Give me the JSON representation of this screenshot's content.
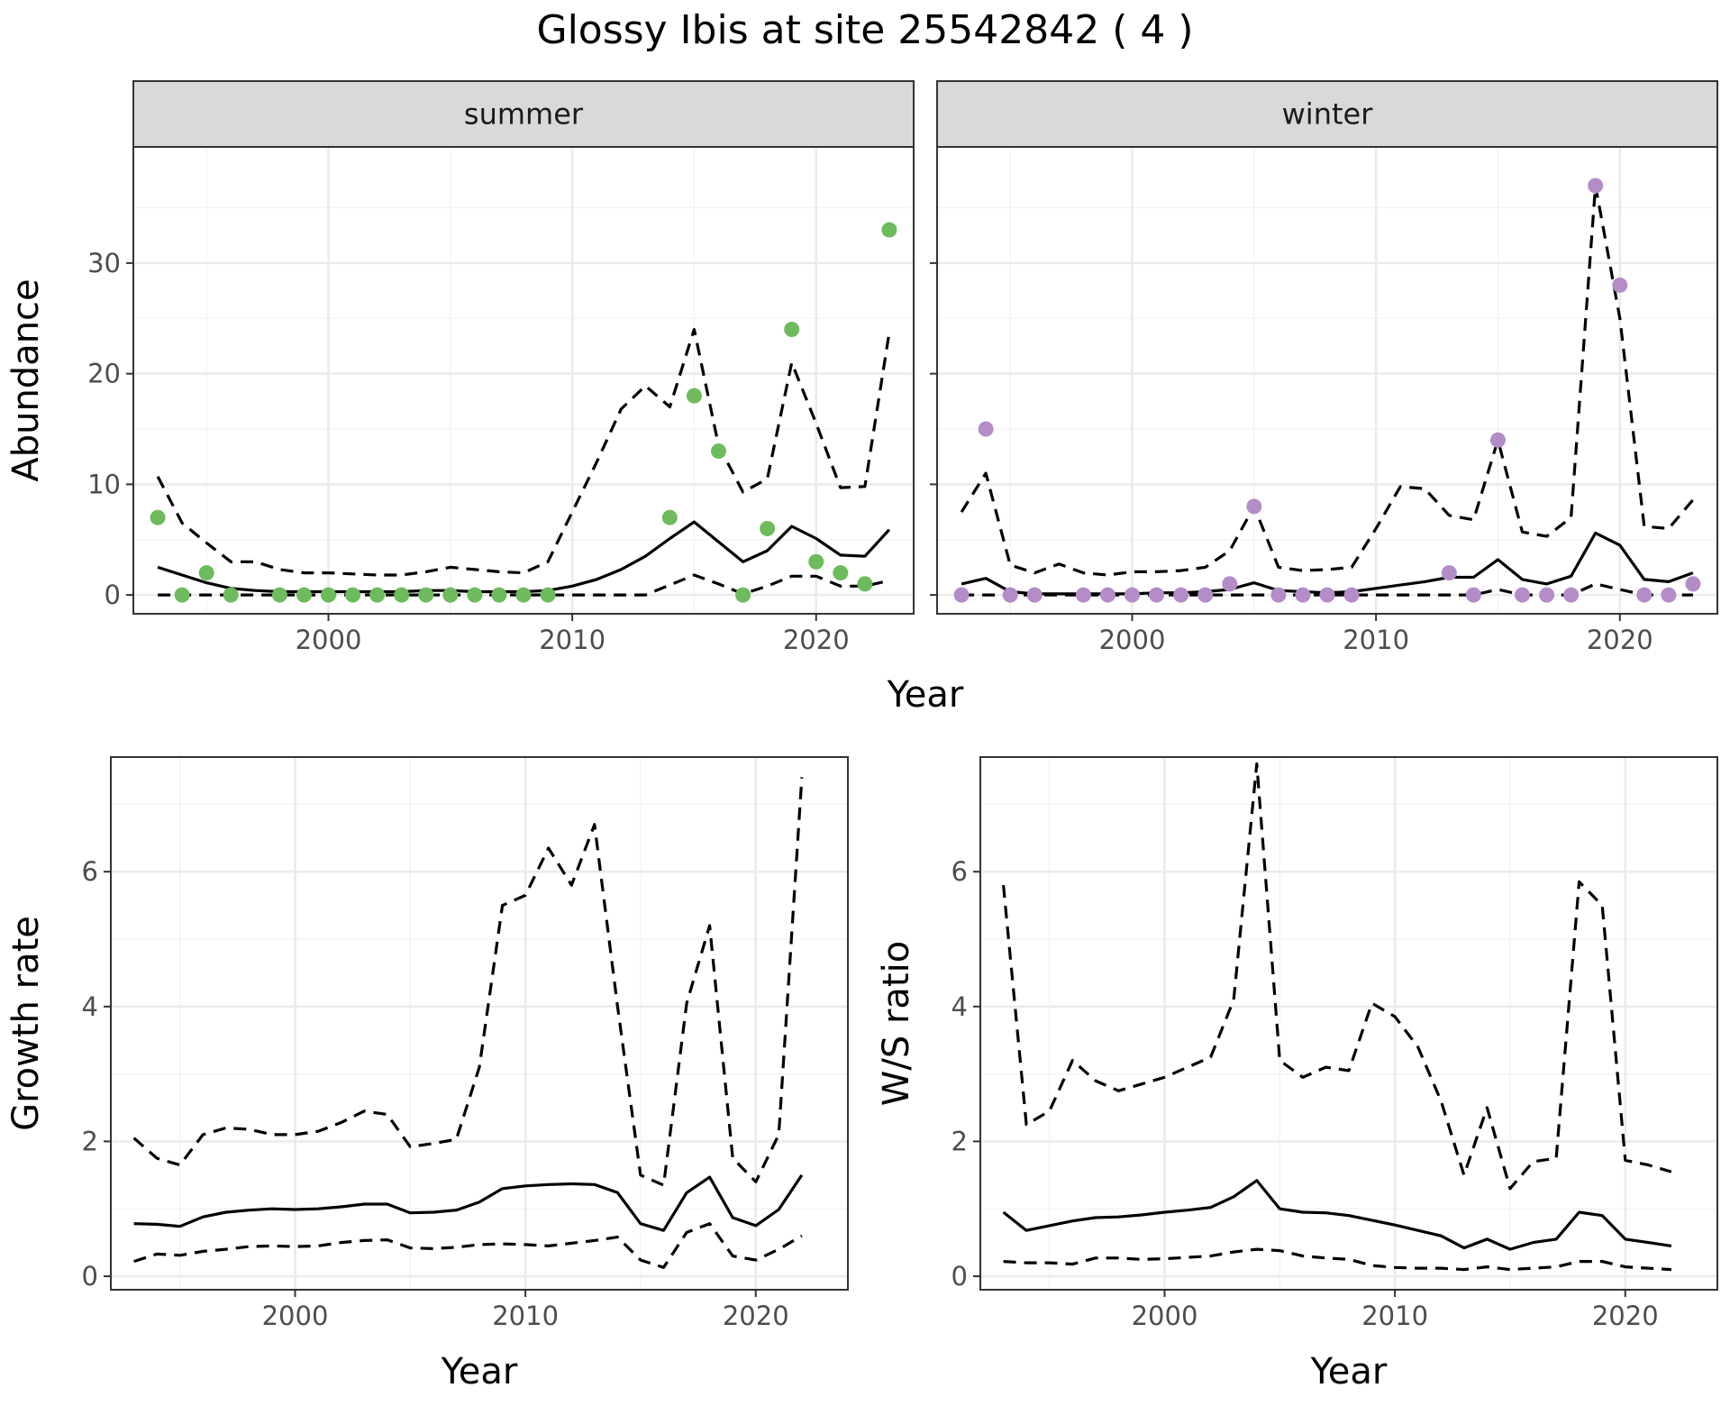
{
  "title": "Glossy Ibis at site 25542842 ( 4 )",
  "colors": {
    "summer_points": "#6dbb5c",
    "winter_points": "#b48cc8",
    "lines": "#000000",
    "strip": "#d9d9d9"
  },
  "chart_data": [
    {
      "type": "line",
      "panel": "summer",
      "strip_label": "summer",
      "xlabel": "Year",
      "ylabel": "Abundance",
      "xlim": [
        1992,
        2024
      ],
      "ylim": [
        -1.7,
        40.5
      ],
      "x_ticks": [
        2000,
        2010,
        2020
      ],
      "y_ticks": [
        0,
        10,
        20,
        30
      ],
      "points_color": "#6dbb5c",
      "points": {
        "x": [
          1993,
          1994,
          1995,
          1996,
          1998,
          1999,
          2000,
          2001,
          2002,
          2003,
          2004,
          2005,
          2006,
          2007,
          2008,
          2009,
          2014,
          2015,
          2016,
          2017,
          2018,
          2019,
          2020,
          2021,
          2022,
          2023
        ],
        "y": [
          7,
          0,
          2,
          0,
          0,
          0,
          0,
          0,
          0,
          0,
          0,
          0,
          0,
          0,
          0,
          0,
          7,
          18,
          13,
          0,
          6,
          24,
          3,
          2,
          1,
          33
        ]
      },
      "series": [
        {
          "role": "estimate",
          "x": [
            1993,
            1994,
            1995,
            1996,
            1997,
            1998,
            1999,
            2000,
            2001,
            2002,
            2003,
            2004,
            2005,
            2006,
            2007,
            2008,
            2009,
            2010,
            2011,
            2012,
            2013,
            2014,
            2015,
            2016,
            2017,
            2018,
            2019,
            2020,
            2021,
            2022,
            2023
          ],
          "y": [
            2.5,
            1.8,
            1.1,
            0.6,
            0.4,
            0.3,
            0.3,
            0.3,
            0.3,
            0.3,
            0.3,
            0.4,
            0.4,
            0.3,
            0.3,
            0.3,
            0.4,
            0.8,
            1.4,
            2.3,
            3.5,
            5.1,
            6.6,
            4.8,
            3.0,
            4.0,
            6.2,
            5.1,
            3.6,
            3.5,
            5.9
          ]
        },
        {
          "role": "upper",
          "x": [
            1993,
            1994,
            1995,
            1996,
            1997,
            1998,
            1999,
            2000,
            2001,
            2002,
            2003,
            2004,
            2005,
            2006,
            2007,
            2008,
            2009,
            2010,
            2011,
            2012,
            2013,
            2014,
            2015,
            2016,
            2017,
            2018,
            2019,
            2020,
            2021,
            2022,
            2023
          ],
          "y": [
            10.7,
            6.5,
            4.7,
            3.0,
            3.0,
            2.3,
            2.0,
            2.0,
            1.9,
            1.8,
            1.8,
            2.1,
            2.5,
            2.3,
            2.1,
            2.0,
            3.0,
            7.5,
            12.0,
            16.8,
            18.9,
            17.0,
            24.0,
            13.5,
            9.3,
            10.5,
            21.0,
            15.5,
            9.7,
            9.8,
            23.7
          ]
        },
        {
          "role": "lower",
          "x": [
            1993,
            1994,
            1995,
            1996,
            1997,
            1998,
            1999,
            2000,
            2001,
            2002,
            2003,
            2004,
            2005,
            2006,
            2007,
            2008,
            2009,
            2010,
            2011,
            2012,
            2013,
            2014,
            2015,
            2016,
            2017,
            2018,
            2019,
            2020,
            2021,
            2022,
            2023
          ],
          "y": [
            0,
            0,
            0,
            0,
            0,
            0,
            0,
            0,
            0,
            0,
            0,
            0,
            0,
            0,
            0,
            0,
            0,
            0,
            0,
            0,
            0,
            0.9,
            1.8,
            1.0,
            0.1,
            0.8,
            1.7,
            1.7,
            0.8,
            0.8,
            1.3
          ]
        }
      ]
    },
    {
      "type": "line",
      "panel": "winter",
      "strip_label": "winter",
      "xlabel": "Year",
      "ylabel": "Abundance",
      "xlim": [
        1992,
        2024
      ],
      "ylim": [
        -1.7,
        40.5
      ],
      "x_ticks": [
        2000,
        2010,
        2020
      ],
      "y_ticks": [
        0,
        10,
        20,
        30
      ],
      "points_color": "#b48cc8",
      "points": {
        "x": [
          1993,
          1994,
          1995,
          1996,
          1998,
          1999,
          2000,
          2001,
          2002,
          2003,
          2004,
          2005,
          2006,
          2007,
          2008,
          2009,
          2013,
          2014,
          2015,
          2016,
          2017,
          2018,
          2019,
          2020,
          2021,
          2022,
          2023
        ],
        "y": [
          0,
          15,
          0,
          0,
          0,
          0,
          0,
          0,
          0,
          0,
          1,
          8,
          0,
          0,
          0,
          0,
          2,
          0,
          14,
          0,
          0,
          0,
          37,
          28,
          0,
          0,
          1
        ]
      },
      "series": [
        {
          "role": "estimate",
          "x": [
            1993,
            1994,
            1995,
            1996,
            1997,
            1998,
            1999,
            2000,
            2001,
            2002,
            2003,
            2004,
            2005,
            2006,
            2007,
            2008,
            2009,
            2010,
            2011,
            2012,
            2013,
            2014,
            2015,
            2016,
            2017,
            2018,
            2019,
            2020,
            2021,
            2022,
            2023
          ],
          "y": [
            1.0,
            1.5,
            0.3,
            0.1,
            0.1,
            0.1,
            0.1,
            0.1,
            0.2,
            0.2,
            0.3,
            0.5,
            1.1,
            0.4,
            0.3,
            0.2,
            0.3,
            0.6,
            0.9,
            1.2,
            1.6,
            1.6,
            3.2,
            1.4,
            1.0,
            1.7,
            5.6,
            4.5,
            1.4,
            1.2,
            2.0
          ]
        },
        {
          "role": "upper",
          "x": [
            1993,
            1994,
            1995,
            1996,
            1997,
            1998,
            1999,
            2000,
            2001,
            2002,
            2003,
            2004,
            2005,
            2006,
            2007,
            2008,
            2009,
            2010,
            2011,
            2012,
            2013,
            2014,
            2015,
            2016,
            2017,
            2018,
            2019,
            2020,
            2021,
            2022,
            2023
          ],
          "y": [
            7.5,
            11.0,
            2.7,
            2.0,
            2.8,
            2.0,
            1.8,
            2.1,
            2.1,
            2.2,
            2.5,
            4.0,
            8.0,
            2.5,
            2.2,
            2.3,
            2.5,
            6.0,
            9.8,
            9.6,
            7.2,
            6.8,
            14.0,
            5.7,
            5.3,
            7.0,
            37.0,
            25.0,
            6.2,
            6.0,
            8.6
          ]
        },
        {
          "role": "lower",
          "x": [
            1993,
            1994,
            1995,
            1996,
            1997,
            1998,
            1999,
            2000,
            2001,
            2002,
            2003,
            2004,
            2005,
            2006,
            2007,
            2008,
            2009,
            2010,
            2011,
            2012,
            2013,
            2014,
            2015,
            2016,
            2017,
            2018,
            2019,
            2020,
            2021,
            2022,
            2023
          ],
          "y": [
            0,
            0,
            0,
            0,
            0,
            0,
            0,
            0,
            0,
            0,
            0,
            0,
            0,
            0,
            0,
            0,
            0,
            0,
            0,
            0,
            0,
            0,
            0.5,
            0,
            0,
            0,
            1.0,
            0.5,
            0,
            0,
            0
          ]
        }
      ]
    },
    {
      "type": "line",
      "panel": "growth",
      "xlabel": "Year",
      "ylabel": "Growth rate",
      "xlim": [
        1992,
        2024
      ],
      "ylim": [
        -0.2,
        7.7
      ],
      "x_ticks": [
        2000,
        2010,
        2020
      ],
      "y_ticks": [
        0,
        2,
        4,
        6
      ],
      "series": [
        {
          "role": "estimate",
          "x": [
            1993,
            1994,
            1995,
            1996,
            1997,
            1998,
            1999,
            2000,
            2001,
            2002,
            2003,
            2004,
            2005,
            2006,
            2007,
            2008,
            2009,
            2010,
            2011,
            2012,
            2013,
            2014,
            2015,
            2016,
            2017,
            2018,
            2019,
            2020,
            2021,
            2022
          ],
          "y": [
            0.78,
            0.77,
            0.74,
            0.88,
            0.95,
            0.98,
            1.0,
            0.99,
            1.0,
            1.03,
            1.07,
            1.07,
            0.94,
            0.95,
            0.98,
            1.1,
            1.3,
            1.34,
            1.36,
            1.37,
            1.36,
            1.24,
            0.78,
            0.68,
            1.24,
            1.47,
            0.87,
            0.75,
            0.99,
            1.5
          ]
        },
        {
          "role": "upper",
          "x": [
            1993,
            1994,
            1995,
            1996,
            1997,
            1998,
            1999,
            2000,
            2001,
            2002,
            2003,
            2004,
            2005,
            2006,
            2007,
            2008,
            2009,
            2010,
            2011,
            2012,
            2013,
            2014,
            2015,
            2016,
            2017,
            2018,
            2019,
            2020,
            2021,
            2022
          ],
          "y": [
            2.05,
            1.75,
            1.65,
            2.1,
            2.2,
            2.18,
            2.1,
            2.1,
            2.15,
            2.28,
            2.45,
            2.4,
            1.92,
            1.97,
            2.03,
            3.1,
            5.5,
            5.65,
            6.35,
            5.8,
            6.7,
            4.0,
            1.5,
            1.35,
            4.05,
            5.2,
            1.75,
            1.4,
            2.1,
            7.4
          ]
        },
        {
          "role": "lower",
          "x": [
            1993,
            1994,
            1995,
            1996,
            1997,
            1998,
            1999,
            2000,
            2001,
            2002,
            2003,
            2004,
            2005,
            2006,
            2007,
            2008,
            2009,
            2010,
            2011,
            2012,
            2013,
            2014,
            2015,
            2016,
            2017,
            2018,
            2019,
            2020,
            2021,
            2022
          ],
          "y": [
            0.22,
            0.33,
            0.31,
            0.37,
            0.4,
            0.44,
            0.45,
            0.44,
            0.45,
            0.5,
            0.53,
            0.54,
            0.42,
            0.41,
            0.43,
            0.47,
            0.48,
            0.47,
            0.45,
            0.49,
            0.53,
            0.58,
            0.24,
            0.13,
            0.65,
            0.78,
            0.3,
            0.24,
            0.4,
            0.6
          ]
        }
      ]
    },
    {
      "type": "line",
      "panel": "ws_ratio",
      "xlabel": "Year",
      "ylabel": "W/S ratio",
      "xlim": [
        1992,
        2024
      ],
      "ylim": [
        -0.2,
        7.7
      ],
      "x_ticks": [
        2000,
        2010,
        2020
      ],
      "y_ticks": [
        0,
        2,
        4,
        6
      ],
      "series": [
        {
          "role": "estimate",
          "x": [
            1993,
            1994,
            1995,
            1996,
            1997,
            1998,
            1999,
            2000,
            2001,
            2002,
            2003,
            2004,
            2005,
            2006,
            2007,
            2008,
            2009,
            2010,
            2011,
            2012,
            2013,
            2014,
            2015,
            2016,
            2017,
            2018,
            2019,
            2020,
            2021,
            2022
          ],
          "y": [
            0.95,
            0.68,
            0.75,
            0.82,
            0.87,
            0.88,
            0.91,
            0.95,
            0.98,
            1.02,
            1.18,
            1.42,
            1.0,
            0.95,
            0.94,
            0.9,
            0.83,
            0.76,
            0.68,
            0.6,
            0.42,
            0.55,
            0.4,
            0.5,
            0.55,
            0.95,
            0.9,
            0.55,
            0.5,
            0.45
          ]
        },
        {
          "role": "upper",
          "x": [
            1993,
            1994,
            1995,
            1996,
            1997,
            1998,
            1999,
            2000,
            2001,
            2002,
            2003,
            2004,
            2005,
            2006,
            2007,
            2008,
            2009,
            2010,
            2011,
            2012,
            2013,
            2014,
            2015,
            2016,
            2017,
            2018,
            2019,
            2020,
            2021,
            2022
          ],
          "y": [
            5.8,
            2.25,
            2.45,
            3.2,
            2.9,
            2.75,
            2.85,
            2.95,
            3.1,
            3.25,
            4.1,
            7.6,
            3.2,
            2.95,
            3.1,
            3.05,
            4.05,
            3.85,
            3.4,
            2.6,
            1.5,
            2.5,
            1.3,
            1.7,
            1.75,
            5.85,
            5.5,
            1.72,
            1.65,
            1.55
          ]
        },
        {
          "role": "lower",
          "x": [
            1993,
            1994,
            1995,
            1996,
            1997,
            1998,
            1999,
            2000,
            2001,
            2002,
            2003,
            2004,
            2005,
            2006,
            2007,
            2008,
            2009,
            2010,
            2011,
            2012,
            2013,
            2014,
            2015,
            2016,
            2017,
            2018,
            2019,
            2020,
            2021,
            2022
          ],
          "y": [
            0.22,
            0.2,
            0.2,
            0.18,
            0.27,
            0.27,
            0.25,
            0.26,
            0.28,
            0.3,
            0.36,
            0.4,
            0.38,
            0.3,
            0.27,
            0.25,
            0.16,
            0.13,
            0.12,
            0.12,
            0.1,
            0.14,
            0.1,
            0.12,
            0.14,
            0.22,
            0.22,
            0.14,
            0.12,
            0.1
          ]
        }
      ]
    }
  ]
}
